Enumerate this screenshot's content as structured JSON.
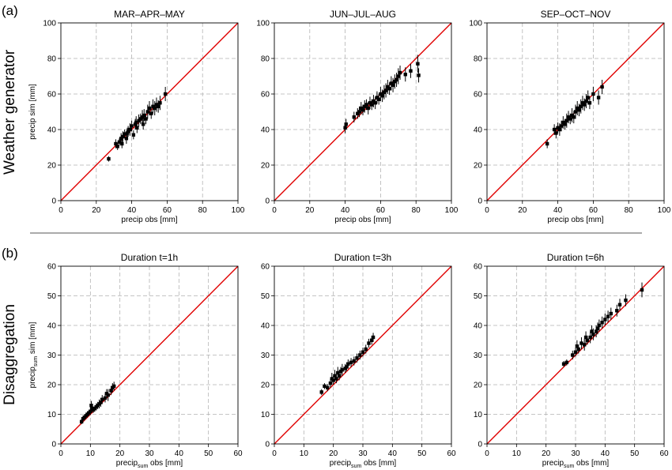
{
  "rows": [
    {
      "letter": "(a)",
      "label": "Weather generator"
    },
    {
      "letter": "(b)",
      "label": "Disaggregation"
    }
  ],
  "chart_data": [
    {
      "type": "scatter",
      "title": "MAR–APR–MAY",
      "xlabel": "precip obs [mm]",
      "ylabel": "precip sim [mm]",
      "xlim": [
        0,
        100
      ],
      "ylim": [
        0,
        100
      ],
      "xticks": [
        0,
        20,
        40,
        60,
        80,
        100
      ],
      "yticks": [
        0,
        20,
        40,
        60,
        80,
        100
      ],
      "grid": true,
      "identity_line": {
        "color": "#e00000"
      },
      "points": [
        [
          27,
          23.5,
          1.5
        ],
        [
          31,
          32,
          2.5
        ],
        [
          32,
          30.5,
          2
        ],
        [
          33,
          33,
          2
        ],
        [
          34,
          35,
          3
        ],
        [
          34.5,
          32,
          2.5
        ],
        [
          35,
          36,
          3
        ],
        [
          36,
          37.5,
          2.5
        ],
        [
          37,
          35,
          3
        ],
        [
          37.5,
          38,
          3
        ],
        [
          38,
          39,
          3
        ],
        [
          39,
          40,
          3.5
        ],
        [
          40,
          42,
          3
        ],
        [
          41,
          37,
          2.5
        ],
        [
          42,
          43,
          3
        ],
        [
          42.5,
          44,
          3.5
        ],
        [
          43,
          41,
          3
        ],
        [
          44,
          45,
          3.5
        ],
        [
          45,
          46,
          3
        ],
        [
          46,
          47,
          4
        ],
        [
          46.5,
          43,
          3
        ],
        [
          47,
          48,
          3.5
        ],
        [
          48,
          46,
          3
        ],
        [
          49,
          50,
          4
        ],
        [
          50,
          52,
          4
        ],
        [
          51,
          49,
          3
        ],
        [
          52,
          53,
          4
        ],
        [
          53,
          52,
          4
        ],
        [
          54,
          54,
          4
        ],
        [
          55,
          53,
          3.5
        ],
        [
          56,
          55,
          4
        ],
        [
          59,
          60,
          4
        ]
      ]
    },
    {
      "type": "scatter",
      "title": "JUN–JUL–AUG",
      "xlabel": "precip obs [mm]",
      "ylabel": "",
      "xlim": [
        0,
        100
      ],
      "ylim": [
        0,
        100
      ],
      "xticks": [
        0,
        20,
        40,
        60,
        80,
        100
      ],
      "yticks": [
        0,
        20,
        40,
        60,
        80,
        100
      ],
      "grid": true,
      "identity_line": {
        "color": "#e00000"
      },
      "points": [
        [
          40,
          41,
          3
        ],
        [
          40.5,
          43,
          3
        ],
        [
          45,
          47,
          3
        ],
        [
          47,
          49,
          3
        ],
        [
          48,
          50,
          3
        ],
        [
          49,
          52,
          3.5
        ],
        [
          50,
          51,
          3
        ],
        [
          51,
          53,
          3.5
        ],
        [
          52,
          54,
          3
        ],
        [
          53,
          52,
          3.5
        ],
        [
          54,
          55,
          3.5
        ],
        [
          55,
          54,
          3
        ],
        [
          56,
          56,
          3.5
        ],
        [
          57,
          55,
          3.5
        ],
        [
          58,
          58,
          3.5
        ],
        [
          59,
          57,
          3
        ],
        [
          60,
          60,
          4
        ],
        [
          61,
          59,
          3.5
        ],
        [
          62,
          61,
          4
        ],
        [
          63,
          62,
          4
        ],
        [
          64,
          64,
          4
        ],
        [
          65,
          63,
          3.5
        ],
        [
          66,
          66,
          4
        ],
        [
          67,
          65,
          4
        ],
        [
          68,
          67,
          4
        ],
        [
          69,
          68,
          4
        ],
        [
          70,
          70,
          4.5
        ],
        [
          71,
          72,
          4
        ],
        [
          74,
          71,
          4
        ],
        [
          77,
          73,
          4
        ],
        [
          81,
          77,
          5
        ],
        [
          81.5,
          70.5,
          4
        ]
      ]
    },
    {
      "type": "scatter",
      "title": "SEP–OCT–NOV",
      "xlabel": "precip obs [mm]",
      "ylabel": "",
      "xlim": [
        0,
        100
      ],
      "ylim": [
        0,
        100
      ],
      "xticks": [
        0,
        20,
        40,
        60,
        80,
        100
      ],
      "yticks": [
        0,
        20,
        40,
        60,
        80,
        100
      ],
      "grid": true,
      "identity_line": {
        "color": "#e00000"
      },
      "points": [
        [
          34,
          32,
          2.5
        ],
        [
          38,
          40,
          3
        ],
        [
          39,
          38,
          3
        ],
        [
          40,
          41,
          3
        ],
        [
          41,
          40,
          3.5
        ],
        [
          42,
          42,
          3
        ],
        [
          43,
          44,
          3.5
        ],
        [
          44,
          43,
          3
        ],
        [
          45,
          45,
          4
        ],
        [
          46,
          47,
          3.5
        ],
        [
          47,
          46,
          3
        ],
        [
          48,
          48,
          4
        ],
        [
          49,
          47,
          3.5
        ],
        [
          50,
          50,
          4
        ],
        [
          51,
          52,
          4
        ],
        [
          52,
          51,
          3.5
        ],
        [
          53,
          53,
          4
        ],
        [
          54,
          55,
          4
        ],
        [
          55,
          54,
          3.5
        ],
        [
          56,
          56,
          4
        ],
        [
          57,
          58,
          4
        ],
        [
          58,
          55,
          3.5
        ],
        [
          60,
          60,
          4
        ],
        [
          63,
          58,
          4
        ],
        [
          65,
          64,
          4
        ]
      ]
    },
    {
      "type": "scatter",
      "title": "Duration t=1h",
      "xlabel": {
        "main": "precip",
        "sub": "sum",
        "rest": " obs [mm]"
      },
      "ylabel": {
        "main": "precip",
        "sub": "sum",
        "rest": " sim [mm]"
      },
      "xlim": [
        0,
        60
      ],
      "ylim": [
        0,
        60
      ],
      "xticks": [
        0,
        10,
        20,
        30,
        40,
        50,
        60
      ],
      "yticks": [
        0,
        10,
        20,
        30,
        40,
        50,
        60
      ],
      "grid": true,
      "identity_line": {
        "color": "#e00000"
      },
      "points": [
        [
          7,
          7.5,
          0.8
        ],
        [
          7.5,
          8.5,
          1
        ],
        [
          8,
          9,
          1
        ],
        [
          8.5,
          9.5,
          1
        ],
        [
          9,
          10,
          1
        ],
        [
          9.5,
          10.5,
          1
        ],
        [
          10,
          11,
          1.2
        ],
        [
          10.3,
          13,
          1.5
        ],
        [
          10.5,
          12,
          1.2
        ],
        [
          11,
          11.5,
          1
        ],
        [
          11.5,
          12,
          1
        ],
        [
          12,
          12.5,
          1.2
        ],
        [
          12.5,
          13,
          1.2
        ],
        [
          13,
          13.5,
          1.5
        ],
        [
          13.5,
          14,
          1.5
        ],
        [
          14,
          15,
          1.5
        ],
        [
          15,
          15.5,
          1.5
        ],
        [
          15.5,
          17,
          1.5
        ],
        [
          16,
          16.5,
          2
        ],
        [
          17,
          18,
          1.5
        ],
        [
          17.5,
          19,
          1.5
        ],
        [
          18,
          19.5,
          1.5
        ]
      ]
    },
    {
      "type": "scatter",
      "title": "Duration t=3h",
      "xlabel": {
        "main": "precip",
        "sub": "sum",
        "rest": " obs [mm]"
      },
      "ylabel": "",
      "xlim": [
        0,
        60
      ],
      "ylim": [
        0,
        60
      ],
      "xticks": [
        0,
        10,
        20,
        30,
        40,
        50,
        60
      ],
      "yticks": [
        0,
        10,
        20,
        30,
        40,
        50,
        60
      ],
      "grid": true,
      "identity_line": {
        "color": "#e00000"
      },
      "points": [
        [
          16,
          17.5,
          1
        ],
        [
          17,
          19.5,
          1
        ],
        [
          18,
          19,
          1.2
        ],
        [
          19,
          20.5,
          1.5
        ],
        [
          19.5,
          22,
          2
        ],
        [
          20,
          21.5,
          1.5
        ],
        [
          20.5,
          23,
          2
        ],
        [
          21,
          22,
          1.5
        ],
        [
          21.5,
          24,
          2
        ],
        [
          22,
          23,
          1.5
        ],
        [
          22.5,
          24.5,
          1.5
        ],
        [
          23,
          25,
          2
        ],
        [
          24,
          25.5,
          1.5
        ],
        [
          24.5,
          26,
          1.5
        ],
        [
          25,
          27,
          1.5
        ],
        [
          26,
          27.5,
          1.5
        ],
        [
          27,
          28,
          1.5
        ],
        [
          28,
          29,
          1.5
        ],
        [
          29,
          30,
          1.5
        ],
        [
          30,
          31,
          1.5
        ],
        [
          31,
          32,
          1.5
        ],
        [
          32,
          34,
          1.5
        ],
        [
          33,
          35,
          1.5
        ],
        [
          33.5,
          36,
          1.5
        ]
      ]
    },
    {
      "type": "scatter",
      "title": "Duration t=6h",
      "xlabel": {
        "main": "precip",
        "sub": "sum",
        "rest": " obs [mm]"
      },
      "ylabel": "",
      "xlim": [
        0,
        60
      ],
      "ylim": [
        0,
        60
      ],
      "xticks": [
        0,
        10,
        20,
        30,
        40,
        50,
        60
      ],
      "yticks": [
        0,
        10,
        20,
        30,
        40,
        50,
        60
      ],
      "grid": true,
      "identity_line": {
        "color": "#e00000"
      },
      "points": [
        [
          26,
          27,
          1
        ],
        [
          27,
          27.5,
          1
        ],
        [
          29,
          30,
          1.5
        ],
        [
          30,
          31,
          1.5
        ],
        [
          30.5,
          33,
          2
        ],
        [
          31,
          32,
          1.5
        ],
        [
          32,
          34,
          2
        ],
        [
          33,
          33.5,
          2
        ],
        [
          33.5,
          36,
          2
        ],
        [
          34,
          35,
          1.5
        ],
        [
          35,
          36,
          2
        ],
        [
          35.5,
          38,
          2
        ],
        [
          36,
          37,
          2
        ],
        [
          37,
          38,
          2
        ],
        [
          37.5,
          39,
          2
        ],
        [
          38,
          40,
          2
        ],
        [
          39,
          41,
          2
        ],
        [
          40,
          42,
          2
        ],
        [
          41,
          43,
          2
        ],
        [
          42,
          44,
          2
        ],
        [
          44,
          45,
          2
        ],
        [
          45,
          47,
          2
        ],
        [
          47,
          48.5,
          2
        ],
        [
          52.5,
          52,
          2.5
        ]
      ]
    }
  ]
}
